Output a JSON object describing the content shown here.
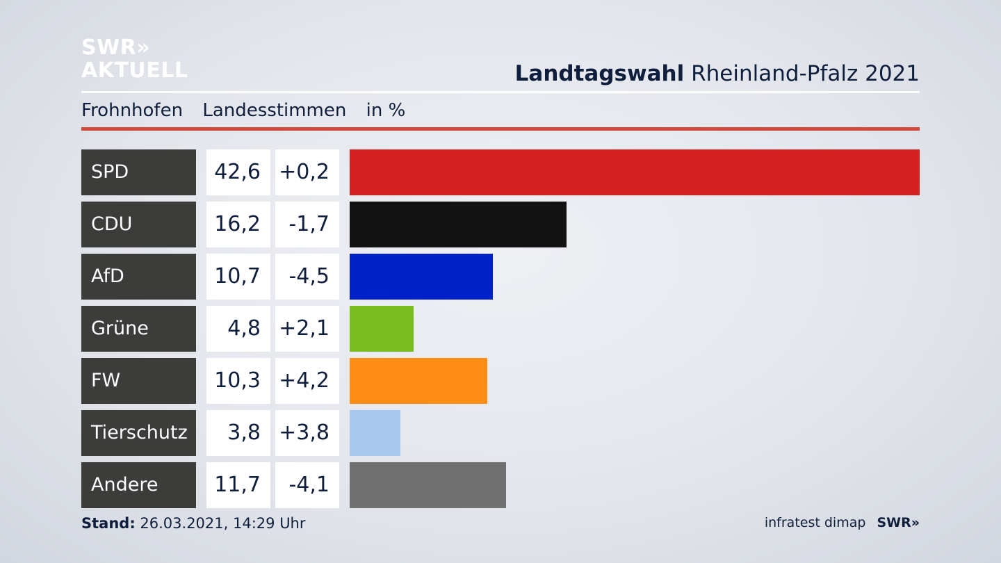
{
  "logo": {
    "line1": "SWR»",
    "line2": "AKTUELL"
  },
  "title": {
    "bold": "Landtagswahl",
    "rest": "Rheinland-Pfalz 2021"
  },
  "subhead": {
    "place": "Frohnhofen",
    "type": "Landesstimmen",
    "unit": "in %"
  },
  "footer": {
    "stand_label": "Stand:",
    "stand_value": "26.03.2021, 14:29 Uhr",
    "source": "infratest dimap",
    "brand": "SWR»"
  },
  "colors": {
    "accent_rule": "#d24a3c",
    "label_bg": "#3c3c3a"
  },
  "chart_data": {
    "type": "bar",
    "orientation": "horizontal",
    "categories": [
      "SPD",
      "CDU",
      "AfD",
      "Grüne",
      "FW",
      "Tierschutz",
      "Andere"
    ],
    "values": [
      42.6,
      16.2,
      10.7,
      4.8,
      10.3,
      3.8,
      11.7
    ],
    "values_text": [
      "42,6",
      "16,2",
      "10,7",
      "4,8",
      "10,3",
      "3,8",
      "11,7"
    ],
    "changes": [
      0.2,
      -1.7,
      -4.5,
      2.1,
      4.2,
      3.8,
      -4.1
    ],
    "changes_text": [
      "+0,2",
      "-1,7",
      "-4,5",
      "+2,1",
      "+4,2",
      "+3,8",
      "-4,1"
    ],
    "colors": [
      "#d42020",
      "#121212",
      "#0020c8",
      "#78bc1e",
      "#ff8c14",
      "#a8c8f0",
      "#707070"
    ],
    "xlim": [
      0,
      42.6
    ]
  }
}
